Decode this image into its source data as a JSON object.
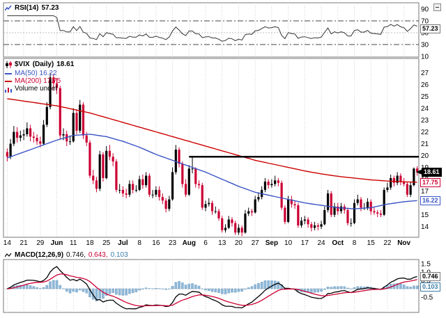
{
  "panels": {
    "rsi": {
      "label": "RSI(14)",
      "value": "57.23"
    },
    "price": {
      "symbol": "$VIX",
      "timeframe": "(Daily)",
      "last": "18.61",
      "ma50_text": "MA(50) 16.22",
      "ma200_text": "MA(200) 17.75",
      "ma50_value": "16.22",
      "ma200_value": "17.75",
      "volume_text": "Volume undef"
    },
    "macd": {
      "label": "MACD(12,26,9)",
      "v1": "0.746,",
      "v2": "0.643,",
      "v3": "0.103",
      "macd_value": "0.746",
      "hist_value": "0.103"
    }
  },
  "colors": {
    "up": "#000000",
    "down": "#cc0033",
    "ma50": "#3a54c4",
    "ma200": "#cc0000",
    "macd_line": "#000000",
    "signal_line": "#cc0033",
    "histogram": "#8fb8d8",
    "rsi_line": "#333333",
    "trendline": "#000000",
    "grid": "#cfcfcf",
    "border": "#777777"
  },
  "chart_data": [
    {
      "type": "line",
      "name": "rsi-panel",
      "title": "RSI(14)",
      "period": 14,
      "last": 57.23,
      "ylim": [
        0,
        100
      ],
      "y_ticks": [
        "90",
        "70",
        "50",
        "30",
        "10"
      ],
      "reference_levels": {
        "overbought": 70,
        "midline": 50,
        "oversold": 30
      }
    },
    {
      "type": "candlestick",
      "name": "price-panel",
      "title": "$VIX (Daily)",
      "last": 18.61,
      "ylim": [
        13.1,
        28.2
      ],
      "y_ticks": [
        "27",
        "26",
        "25",
        "24",
        "23",
        "22",
        "21",
        "20",
        "19",
        "18",
        "17",
        "16",
        "15",
        "14"
      ],
      "tick_step": 5,
      "x_ticklabels": [
        "14",
        "21",
        "29",
        "Jun",
        "11",
        "18",
        "25",
        "Jul",
        "8",
        "16",
        "23",
        "Aug",
        "6",
        "13",
        "20",
        "27",
        "Sep",
        "10",
        "17",
        "24",
        "Oct",
        "8",
        "15",
        "22",
        "Nov"
      ],
      "trendline": {
        "level": 19.9,
        "start_index": 55
      },
      "volume": "undef",
      "overlays": [
        {
          "name": "MA(50)",
          "last": 16.22,
          "weekly": [
            19.8,
            20.3,
            20.8,
            21.3,
            21.7,
            21.8,
            21.6,
            21.2,
            20.7,
            20.1,
            19.6,
            19.1,
            18.6,
            18.0,
            17.4,
            16.9,
            16.6,
            16.3,
            16.0,
            15.8,
            15.6,
            15.5,
            15.6,
            15.9,
            16.1,
            16.22
          ]
        },
        {
          "name": "MA(200)",
          "last": 17.75,
          "weekly": [
            24.8,
            24.6,
            24.4,
            24.2,
            23.9,
            23.6,
            23.2,
            22.8,
            22.4,
            22.0,
            21.6,
            21.2,
            20.8,
            20.4,
            20.0,
            19.6,
            19.3,
            19.0,
            18.7,
            18.45,
            18.25,
            18.1,
            17.95,
            17.85,
            17.78,
            17.75
          ]
        }
      ],
      "ohlc": [
        [
          20.3,
          20.6,
          19.5,
          19.9
        ],
        [
          19.9,
          21.4,
          19.7,
          21.0
        ],
        [
          21.0,
          22.5,
          20.8,
          22.0
        ],
        [
          22.0,
          22.4,
          21.1,
          21.5
        ],
        [
          21.5,
          22.1,
          21.2,
          21.7
        ],
        [
          21.7,
          22.2,
          21.3,
          21.8
        ],
        [
          21.8,
          22.8,
          21.6,
          22.3
        ],
        [
          22.3,
          22.6,
          21.2,
          21.6
        ],
        [
          21.6,
          22.0,
          21.1,
          21.5
        ],
        [
          21.5,
          21.8,
          20.9,
          21.2
        ],
        [
          21.2,
          21.6,
          20.7,
          21.0
        ],
        [
          21.0,
          23.0,
          20.9,
          22.6
        ],
        [
          22.6,
          24.5,
          22.4,
          24.1
        ],
        [
          24.1,
          27.0,
          23.9,
          26.6
        ],
        [
          26.6,
          26.9,
          25.5,
          26.1
        ],
        [
          26.1,
          26.5,
          25.2,
          25.7
        ],
        [
          25.7,
          25.9,
          21.4,
          21.7
        ],
        [
          21.7,
          22.3,
          21.3,
          21.8
        ],
        [
          21.8,
          22.1,
          20.8,
          21.2
        ],
        [
          21.2,
          21.7,
          20.9,
          21.2
        ],
        [
          21.2,
          24.0,
          21.1,
          23.6
        ],
        [
          23.6,
          23.9,
          21.8,
          22.1
        ],
        [
          22.1,
          24.7,
          21.9,
          24.3
        ],
        [
          24.3,
          24.5,
          21.4,
          21.7
        ],
        [
          21.7,
          22.0,
          20.8,
          21.1
        ],
        [
          21.1,
          21.3,
          18.1,
          18.3
        ],
        [
          18.3,
          18.8,
          17.6,
          17.9
        ],
        [
          17.9,
          18.2,
          16.9,
          17.2
        ],
        [
          17.2,
          20.4,
          17.0,
          20.1
        ],
        [
          20.1,
          20.3,
          17.8,
          18.1
        ],
        [
          18.1,
          20.8,
          18.0,
          20.4
        ],
        [
          20.4,
          20.9,
          19.6,
          19.9
        ],
        [
          19.9,
          20.2,
          19.1,
          19.5
        ],
        [
          19.5,
          19.7,
          16.9,
          17.1
        ],
        [
          17.1,
          17.6,
          16.8,
          17.1
        ],
        [
          17.1,
          17.4,
          16.5,
          16.8
        ],
        [
          16.8,
          17.2,
          16.4,
          16.7
        ],
        [
          16.7,
          17.9,
          16.5,
          17.6
        ],
        [
          17.6,
          17.9,
          16.8,
          17.1
        ],
        [
          17.1,
          17.5,
          16.9,
          17.1
        ],
        [
          17.1,
          18.3,
          17.0,
          18.0
        ],
        [
          18.0,
          18.4,
          17.2,
          17.5
        ],
        [
          17.5,
          18.6,
          17.3,
          18.3
        ],
        [
          18.3,
          18.5,
          16.5,
          16.7
        ],
        [
          16.7,
          17.1,
          16.4,
          16.7
        ],
        [
          16.7,
          17.4,
          16.5,
          17.1
        ],
        [
          17.1,
          17.4,
          16.2,
          16.5
        ],
        [
          16.5,
          16.8,
          15.9,
          16.2
        ],
        [
          16.2,
          16.4,
          15.2,
          15.5
        ],
        [
          15.5,
          16.6,
          15.3,
          16.3
        ],
        [
          16.3,
          19.0,
          16.2,
          18.6
        ],
        [
          18.6,
          20.9,
          18.4,
          20.5
        ],
        [
          20.5,
          20.7,
          19.0,
          19.3
        ],
        [
          19.3,
          19.5,
          17.3,
          17.6
        ],
        [
          17.6,
          18.0,
          16.5,
          16.7
        ],
        [
          16.7,
          19.2,
          16.6,
          18.9
        ],
        [
          18.9,
          19.9,
          18.5,
          18.9
        ],
        [
          18.9,
          19.0,
          17.3,
          17.6
        ],
        [
          17.6,
          17.9,
          17.2,
          17.5
        ],
        [
          17.5,
          17.7,
          15.4,
          15.6
        ],
        [
          15.6,
          16.2,
          15.3,
          15.9
        ],
        [
          15.9,
          16.4,
          15.7,
          16.0
        ],
        [
          16.0,
          16.2,
          15.0,
          15.3
        ],
        [
          15.3,
          15.7,
          15.1,
          15.3
        ],
        [
          15.3,
          15.5,
          14.5,
          14.7
        ],
        [
          14.7,
          14.9,
          13.5,
          13.7
        ],
        [
          13.7,
          14.2,
          13.5,
          13.9
        ],
        [
          13.9,
          14.9,
          13.8,
          14.6
        ],
        [
          14.6,
          14.8,
          14.0,
          14.3
        ],
        [
          14.3,
          14.5,
          13.3,
          13.5
        ],
        [
          13.5,
          14.2,
          13.3,
          13.9
        ],
        [
          13.9,
          14.1,
          13.2,
          13.5
        ],
        [
          13.5,
          15.4,
          13.4,
          15.1
        ],
        [
          15.1,
          15.6,
          14.9,
          15.3
        ],
        [
          15.3,
          15.5,
          14.9,
          15.2
        ],
        [
          15.2,
          16.6,
          15.1,
          16.3
        ],
        [
          16.3,
          16.9,
          16.1,
          16.5
        ],
        [
          16.5,
          17.4,
          16.3,
          17.1
        ],
        [
          17.1,
          18.1,
          16.9,
          17.8
        ],
        [
          17.8,
          18.0,
          17.2,
          17.5
        ],
        [
          17.5,
          18.0,
          17.3,
          17.6
        ],
        [
          17.6,
          18.3,
          17.4,
          17.9
        ],
        [
          17.9,
          18.1,
          17.4,
          17.7
        ],
        [
          17.7,
          17.9,
          15.4,
          15.6
        ],
        [
          15.6,
          15.8,
          14.2,
          14.4
        ],
        [
          14.4,
          16.6,
          14.3,
          16.3
        ],
        [
          16.3,
          16.6,
          15.6,
          15.9
        ],
        [
          15.9,
          16.2,
          15.5,
          15.8
        ],
        [
          15.8,
          16.0,
          13.9,
          14.1
        ],
        [
          14.1,
          14.8,
          13.9,
          14.5
        ],
        [
          14.5,
          14.9,
          14.2,
          14.6
        ],
        [
          14.6,
          14.8,
          13.9,
          14.2
        ],
        [
          14.2,
          14.4,
          13.6,
          13.9
        ],
        [
          13.9,
          14.4,
          13.7,
          14.1
        ],
        [
          14.1,
          14.3,
          13.7,
          14.0
        ],
        [
          14.0,
          14.5,
          13.8,
          14.2
        ],
        [
          14.2,
          15.7,
          14.1,
          15.4
        ],
        [
          15.4,
          17.1,
          15.2,
          16.8
        ],
        [
          16.8,
          17.0,
          14.8,
          15.0
        ],
        [
          15.0,
          16.0,
          14.8,
          15.7
        ],
        [
          15.7,
          16.0,
          15.0,
          15.3
        ],
        [
          15.3,
          16.0,
          15.1,
          15.7
        ],
        [
          15.7,
          15.9,
          15.1,
          15.4
        ],
        [
          15.4,
          15.6,
          14.1,
          14.3
        ],
        [
          14.3,
          14.7,
          14.0,
          14.3
        ],
        [
          14.3,
          16.3,
          14.2,
          16.0
        ],
        [
          16.0,
          16.7,
          15.8,
          16.3
        ],
        [
          16.3,
          16.5,
          15.3,
          15.6
        ],
        [
          15.6,
          16.0,
          15.4,
          15.6
        ],
        [
          15.6,
          16.4,
          15.4,
          16.1
        ],
        [
          16.1,
          16.3,
          15.0,
          15.3
        ],
        [
          15.3,
          15.6,
          15.0,
          15.2
        ],
        [
          15.2,
          15.4,
          14.8,
          15.1
        ],
        [
          15.1,
          15.4,
          14.8,
          15.0
        ],
        [
          15.0,
          17.3,
          14.9,
          17.1
        ],
        [
          17.1,
          17.7,
          16.9,
          17.3
        ],
        [
          17.3,
          18.4,
          17.1,
          18.1
        ],
        [
          18.1,
          18.3,
          17.4,
          17.7
        ],
        [
          17.7,
          18.6,
          17.5,
          18.3
        ],
        [
          18.3,
          18.5,
          17.5,
          17.8
        ],
        [
          17.8,
          18.1,
          17.4,
          17.6
        ],
        [
          17.6,
          17.8,
          16.5,
          16.7
        ],
        [
          16.7,
          17.8,
          16.5,
          17.5
        ],
        [
          17.5,
          19.0,
          17.4,
          18.9
        ],
        [
          18.9,
          19.1,
          18.3,
          18.61
        ]
      ]
    },
    {
      "type": "macd",
      "name": "macd-panel",
      "title": "MACD(12,26,9)",
      "params": [
        12,
        26,
        9
      ],
      "last": {
        "macd": 0.746,
        "signal": 0.643,
        "histogram": 0.103
      },
      "ylim": [
        -1.45,
        1.75
      ],
      "y_ticks": [
        "1.5",
        "1.0",
        "0.5",
        "0.0",
        "-0.5"
      ]
    }
  ]
}
